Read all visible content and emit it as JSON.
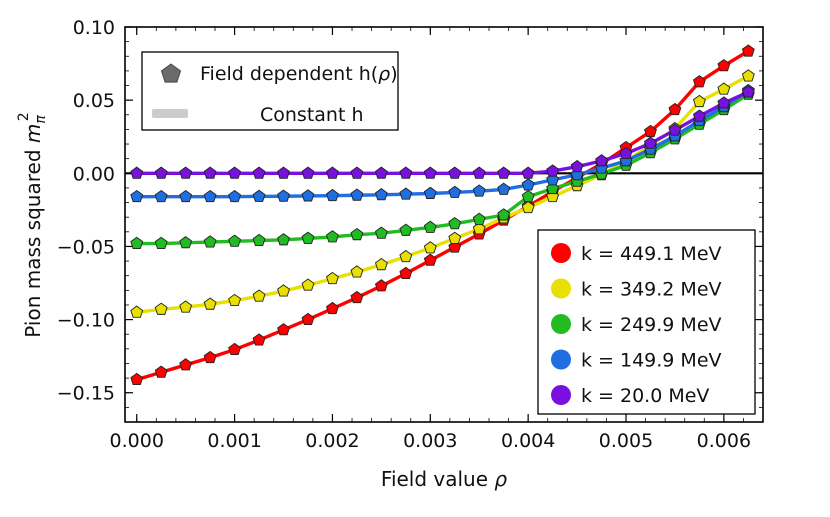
{
  "chart_data": {
    "type": "line",
    "title": "",
    "xlabel_main": "Field value ",
    "xlabel_symbol": "ρ",
    "ylabel_main": "Pion mass squared ",
    "ylabel_symbol": "m",
    "ylabel_sub": "π",
    "ylabel_sup": "2",
    "xlim": [
      -0.00012,
      0.0064
    ],
    "ylim": [
      -0.17,
      0.1
    ],
    "xticks": [
      0.0,
      0.001,
      0.002,
      0.003,
      0.004,
      0.005,
      0.006
    ],
    "xtick_labels": [
      "0.000",
      "0.001",
      "0.002",
      "0.003",
      "0.004",
      "0.005",
      "0.006"
    ],
    "yticks": [
      0.1,
      0.05,
      0.0,
      -0.05,
      -0.1,
      -0.15
    ],
    "ytick_labels": [
      "0.10",
      "0.05",
      "0.00",
      "−0.05",
      "−0.10",
      "−0.15"
    ],
    "grid": false,
    "zero_line": true,
    "legend_style": {
      "position": "top-left",
      "marker_label": "Field dependent h(",
      "marker_label_symbol": "ρ",
      "marker_label_end": ")",
      "line_label": "Constant h",
      "marker_color": "#6b6b6b",
      "line_color": "#cccccc"
    },
    "legend_series": {
      "position": "bottom-right"
    },
    "series": [
      {
        "name": "k = 449.1 MeV",
        "color": "#ff0000",
        "x": [
          0.0,
          0.00025,
          0.0005,
          0.00075,
          0.001,
          0.00125,
          0.0015,
          0.00175,
          0.002,
          0.00225,
          0.0025,
          0.00275,
          0.003,
          0.00325,
          0.0035,
          0.00375,
          0.004,
          0.00425,
          0.0045,
          0.00475,
          0.005,
          0.00525,
          0.0055,
          0.00575,
          0.006,
          0.00625
        ],
        "y": [
          -0.141,
          -0.136,
          -0.131,
          -0.126,
          -0.1205,
          -0.114,
          -0.107,
          -0.1,
          -0.0925,
          -0.085,
          -0.077,
          -0.0685,
          -0.0595,
          -0.0505,
          -0.0415,
          -0.032,
          -0.0225,
          -0.0125,
          -0.003,
          0.0065,
          0.0175,
          0.0285,
          0.0435,
          0.0625,
          0.0735,
          0.0835
        ]
      },
      {
        "name": "k = 349.2 MeV",
        "color": "#e8e000",
        "x": [
          0.0,
          0.00025,
          0.0005,
          0.00075,
          0.001,
          0.00125,
          0.0015,
          0.00175,
          0.002,
          0.00225,
          0.0025,
          0.00275,
          0.003,
          0.00325,
          0.0035,
          0.00375,
          0.004,
          0.00425,
          0.0045,
          0.00475,
          0.005,
          0.00525,
          0.0055,
          0.00575,
          0.006,
          0.00625
        ],
        "y": [
          -0.095,
          -0.093,
          -0.0915,
          -0.0895,
          -0.087,
          -0.084,
          -0.0805,
          -0.0765,
          -0.072,
          -0.0675,
          -0.0625,
          -0.057,
          -0.051,
          -0.0445,
          -0.038,
          -0.0305,
          -0.0235,
          -0.016,
          -0.0085,
          -0.001,
          0.0085,
          0.019,
          0.0305,
          0.049,
          0.0575,
          0.0665
        ]
      },
      {
        "name": "k = 249.9 MeV",
        "color": "#22bb22",
        "x": [
          0.0,
          0.00025,
          0.0005,
          0.00075,
          0.001,
          0.00125,
          0.0015,
          0.00175,
          0.002,
          0.00225,
          0.0025,
          0.00275,
          0.003,
          0.00325,
          0.0035,
          0.00375,
          0.004,
          0.00425,
          0.0045,
          0.00475,
          0.005,
          0.00525,
          0.0055,
          0.00575,
          0.006,
          0.00625
        ],
        "y": [
          -0.048,
          -0.048,
          -0.0475,
          -0.047,
          -0.0465,
          -0.046,
          -0.0455,
          -0.0445,
          -0.0435,
          -0.042,
          -0.041,
          -0.039,
          -0.037,
          -0.0345,
          -0.0315,
          -0.0285,
          -0.016,
          -0.0105,
          -0.0055,
          -0.0005,
          0.0055,
          0.014,
          0.0235,
          0.0335,
          0.0435,
          0.054
        ]
      },
      {
        "name": "k = 149.9 MeV",
        "color": "#1f6fe0",
        "x": [
          0.0,
          0.00025,
          0.0005,
          0.00075,
          0.001,
          0.00125,
          0.0015,
          0.00175,
          0.002,
          0.00225,
          0.0025,
          0.00275,
          0.003,
          0.00325,
          0.0035,
          0.00375,
          0.004,
          0.00425,
          0.0045,
          0.00475,
          0.005,
          0.00525,
          0.0055,
          0.00575,
          0.006,
          0.00625
        ],
        "y": [
          -0.016,
          -0.016,
          -0.016,
          -0.016,
          -0.016,
          -0.0158,
          -0.0157,
          -0.0155,
          -0.0153,
          -0.015,
          -0.0147,
          -0.0143,
          -0.0138,
          -0.0131,
          -0.0122,
          -0.011,
          -0.008,
          -0.0045,
          -0.001,
          0.0035,
          0.0085,
          0.0165,
          0.0255,
          0.036,
          0.0455,
          0.0565
        ]
      },
      {
        "name": "k = 20.0 MeV",
        "color": "#7a10e0",
        "x": [
          0.0,
          0.00025,
          0.0005,
          0.00075,
          0.001,
          0.00125,
          0.0015,
          0.00175,
          0.002,
          0.00225,
          0.0025,
          0.00275,
          0.003,
          0.00325,
          0.0035,
          0.00375,
          0.004,
          0.00425,
          0.0045,
          0.00475,
          0.005,
          0.00525,
          0.0055,
          0.00575,
          0.006,
          0.00625
        ],
        "y": [
          0.0,
          0.0,
          0.0,
          0.0,
          0.0,
          0.0,
          0.0,
          0.0,
          0.0,
          0.0,
          0.0,
          0.0,
          0.0,
          0.0,
          0.0,
          0.0,
          0.0,
          0.0015,
          0.0045,
          0.0085,
          0.0135,
          0.0205,
          0.0295,
          0.039,
          0.048,
          0.0555
        ]
      }
    ]
  }
}
